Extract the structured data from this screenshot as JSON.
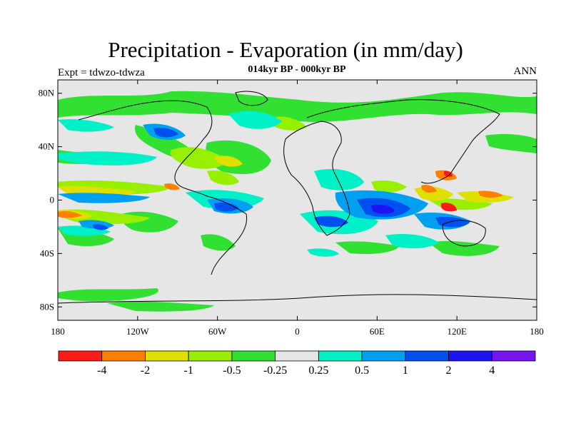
{
  "title": "Precipitation - Evaporation (in mm/day)",
  "subtitle": "014kyr BP - 000kyr BP",
  "left_label": "Expt = tdwzo-tdwza",
  "right_label": "ANN",
  "lat_ticks": [
    {
      "value": 80,
      "label": "80N"
    },
    {
      "value": 40,
      "label": "40N"
    },
    {
      "value": 0,
      "label": "0"
    },
    {
      "value": -40,
      "label": "40S"
    },
    {
      "value": -80,
      "label": "80S"
    }
  ],
  "lon_ticks": [
    {
      "value": -180,
      "label": "180"
    },
    {
      "value": -120,
      "label": "120W"
    },
    {
      "value": -60,
      "label": "60W"
    },
    {
      "value": 0,
      "label": "0"
    },
    {
      "value": 60,
      "label": "60E"
    },
    {
      "value": 120,
      "label": "120E"
    },
    {
      "value": 180,
      "label": "180"
    }
  ],
  "colorbar": {
    "colors": [
      "#ff1a1a",
      "#ff8000",
      "#e0e000",
      "#98f000",
      "#32e032",
      "#e6e6e6",
      "#00f0c8",
      "#00a0f0",
      "#0050f0",
      "#1e14f0",
      "#7814f0"
    ],
    "labels": [
      "-4",
      "-2",
      "-1",
      "-0.5",
      "-0.25",
      "0.25",
      "0.5",
      "1",
      "2",
      "4"
    ]
  },
  "colors": {
    "background": "#e6e6e6",
    "coastline": "#000000"
  }
}
